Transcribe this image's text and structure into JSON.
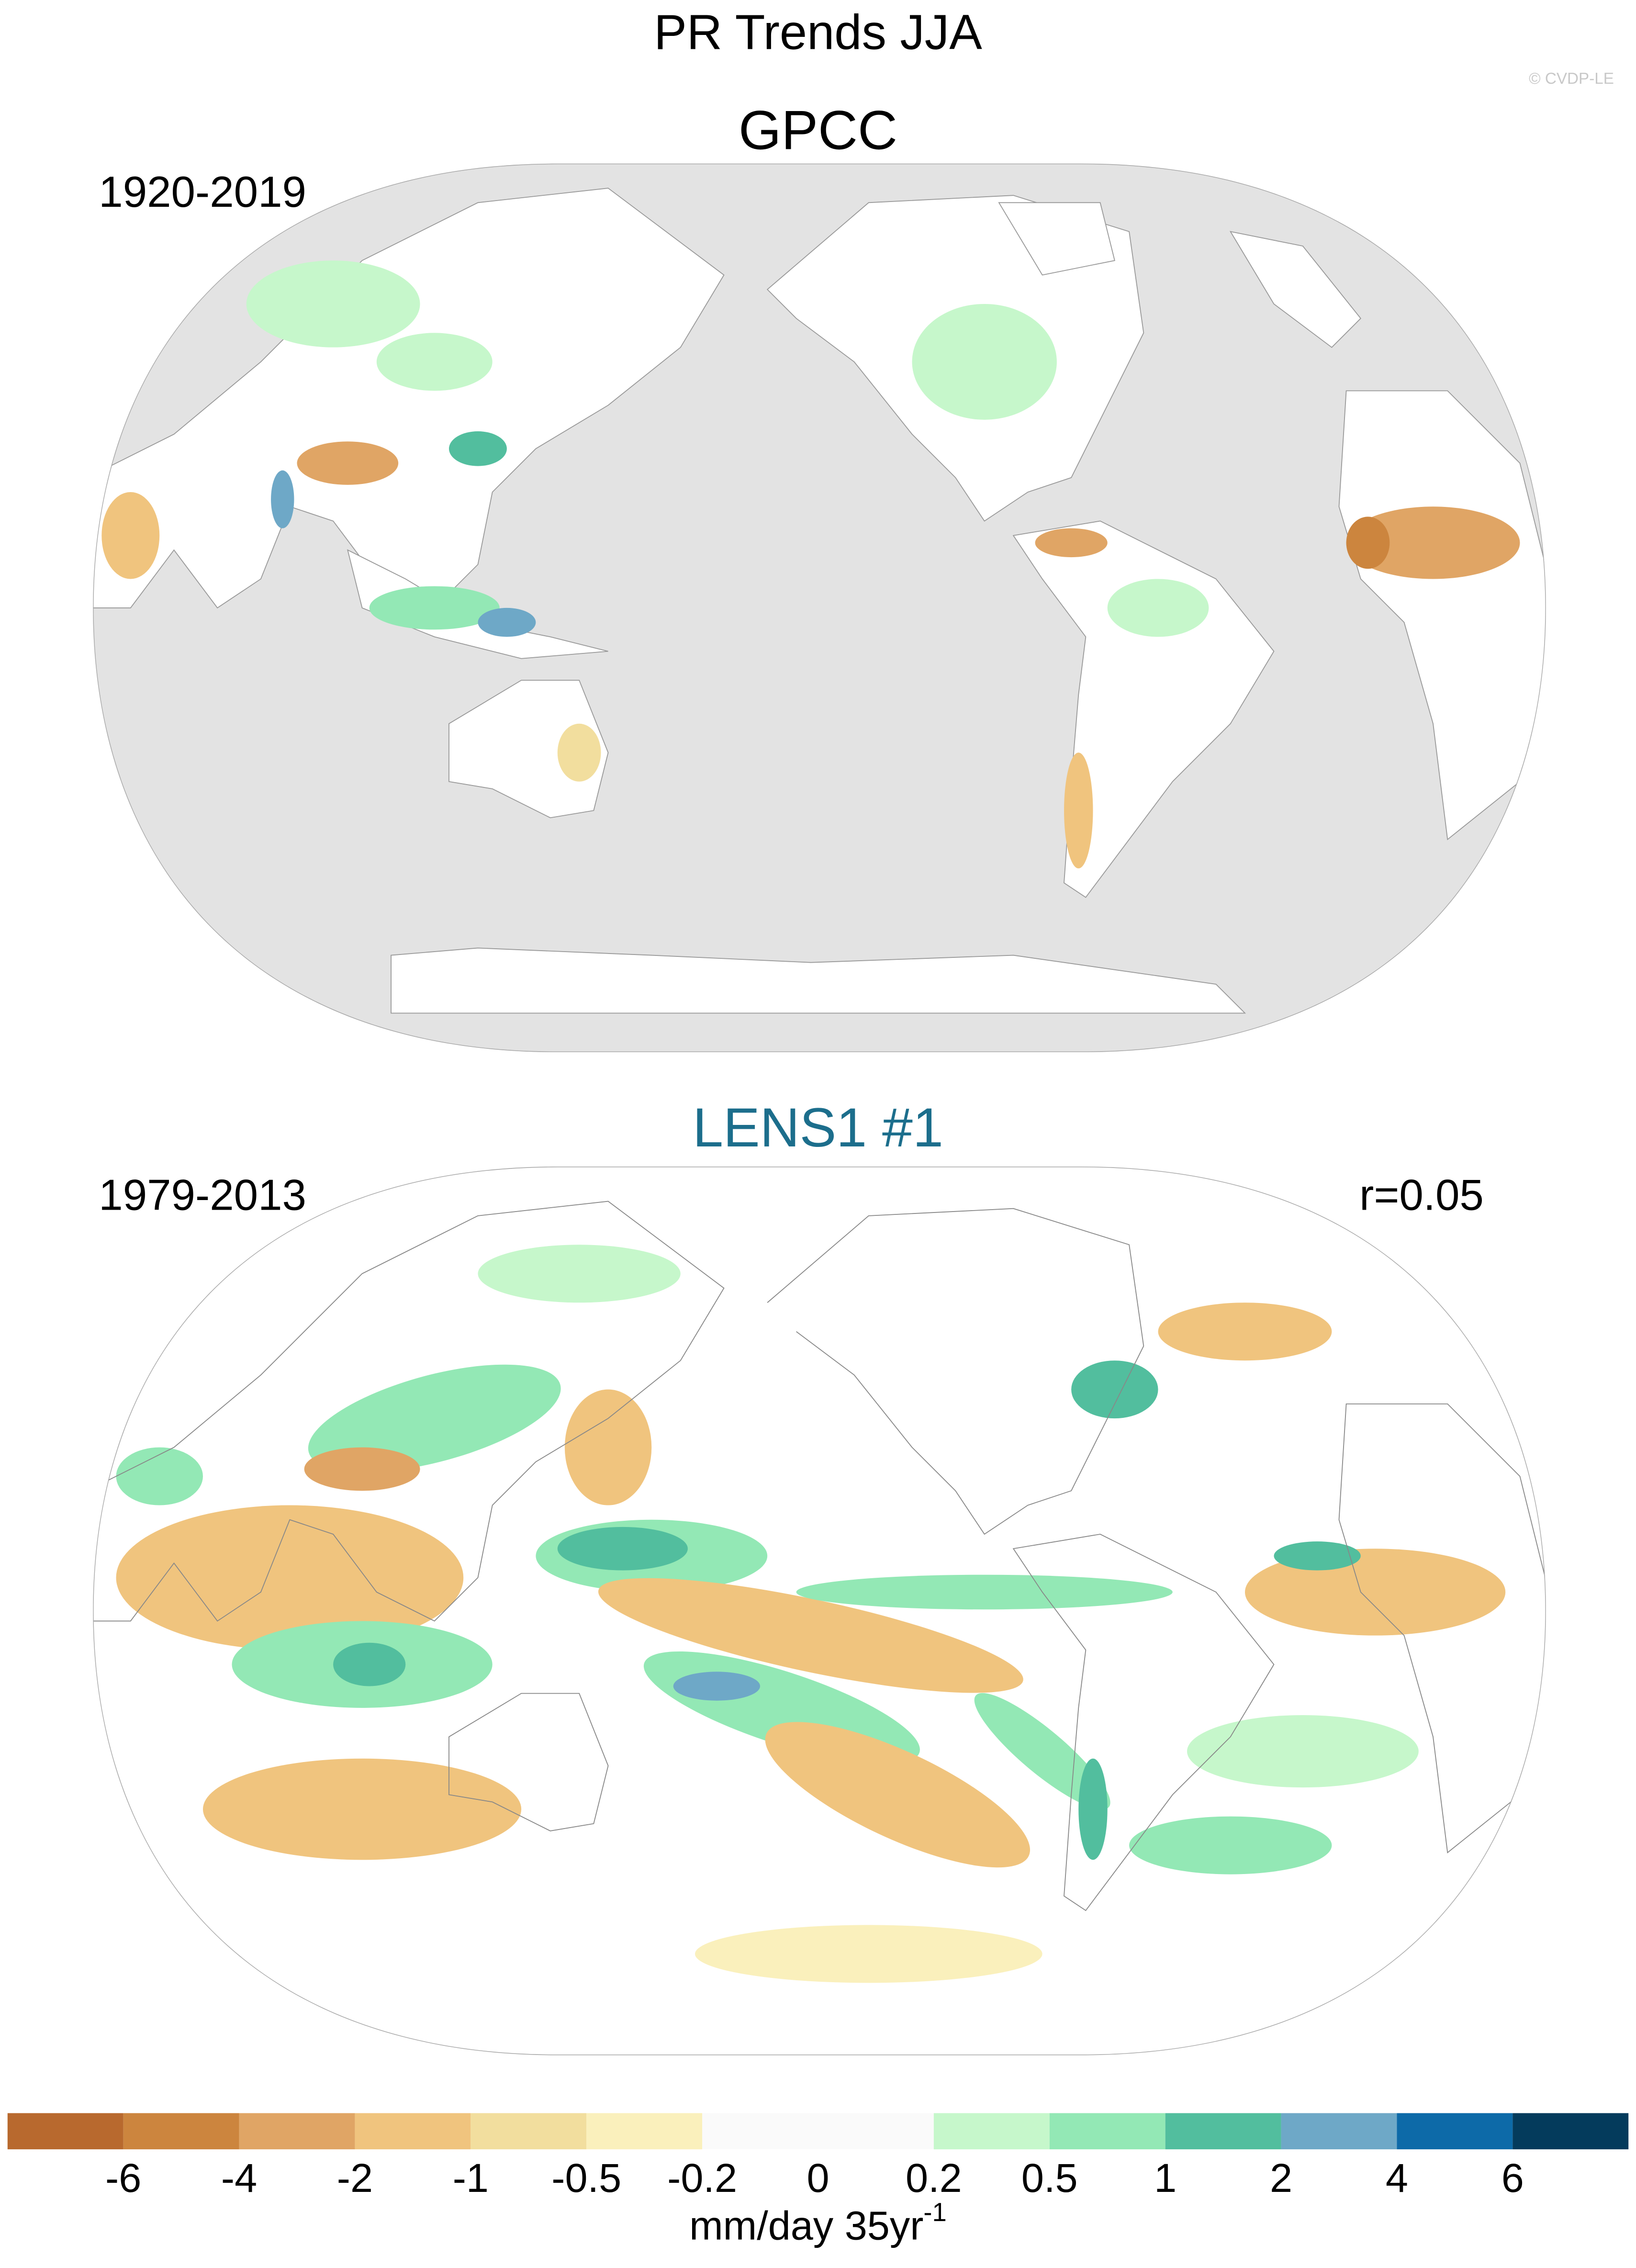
{
  "title": "PR Trends JJA",
  "copyright": "© CVDP-LE",
  "panels": [
    {
      "title": "GPCC",
      "period": "1920-2019"
    },
    {
      "title": "LENS1 #1",
      "period": "1979-2013",
      "correlation": "r=0.05"
    }
  ],
  "colorbar": {
    "levels": [
      -6,
      -4,
      -2,
      -1,
      -0.5,
      -0.2,
      0,
      0.2,
      0.5,
      1,
      2,
      4,
      6
    ],
    "colors": [
      "#b8692e",
      "#cc853e",
      "#e0a565",
      "#f0c47e",
      "#f2de9e",
      "#faf0bc",
      "#fafafa",
      "#fafafa",
      "#c6f7cb",
      "#93e8b5",
      "#52be9e",
      "#6ea8c7",
      "#0d6aa8",
      "#043b5c"
    ],
    "label": "mm/day 35yr",
    "label_superscript": "-1"
  }
}
